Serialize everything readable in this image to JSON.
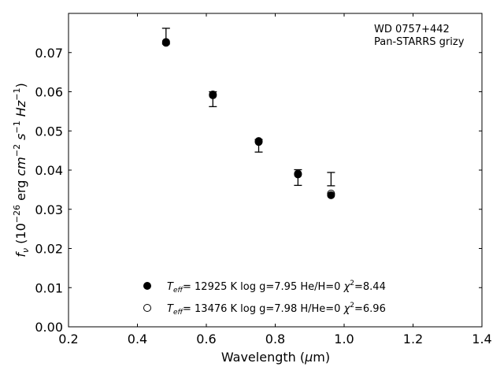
{
  "chart_data": {
    "type": "scatter",
    "annotation": [
      "WD 0757+442",
      "Pan-STARRS grizy"
    ],
    "xlabel_parts": {
      "main": "Wavelength (",
      "mu": "μ",
      "unit": "m)"
    },
    "ylabel_parts": {
      "f": "f",
      "nu": "ν",
      "open": " (10",
      "exp26": "−26",
      "erg": " erg ",
      "cm": "cm",
      "exp2": "−2",
      "s": " s",
      "exp1": "−1",
      "hz": " Hz",
      "close": ")"
    },
    "xlim": [
      0.2,
      1.4
    ],
    "ylim": [
      0.0,
      0.08
    ],
    "xticks": [
      "0.2",
      "0.4",
      "0.6",
      "0.8",
      "1.0",
      "1.2",
      "1.4"
    ],
    "xtick_values": [
      0.2,
      0.4,
      0.6,
      0.8,
      1.0,
      1.2,
      1.4
    ],
    "yticks": [
      "0.00",
      "0.01",
      "0.02",
      "0.03",
      "0.04",
      "0.05",
      "0.06",
      "0.07"
    ],
    "ytick_values": [
      0.0,
      0.01,
      0.02,
      0.03,
      0.04,
      0.05,
      0.06,
      0.07
    ],
    "grid": false,
    "observed": {
      "x": [
        0.483,
        0.619,
        0.752,
        0.866,
        0.962
      ],
      "y": [
        0.0742,
        0.0581,
        0.0462,
        0.0381,
        0.0377
      ],
      "err": [
        0.002,
        0.0019,
        0.0016,
        0.002,
        0.0017
      ]
    },
    "series": [
      {
        "marker": "filled-circle",
        "label": {
          "t": "T",
          "sub": "eff",
          "rest": "= 12925 K  log g=7.95  He/H=0  ",
          "chi": "χ",
          "sup": "2",
          "val": "=8.44"
        },
        "x": [
          0.483,
          0.619,
          0.752,
          0.866,
          0.962
        ],
        "y": [
          0.0727,
          0.0593,
          0.0474,
          0.0389,
          0.0336
        ]
      },
      {
        "marker": "open-circle",
        "label": {
          "t": "T",
          "sub": "eff",
          "rest": "= 13476 K  log g=7.98  H/He=0  ",
          "chi": "χ",
          "sup": "2",
          "val": "=6.96"
        },
        "x": [
          0.483,
          0.619,
          0.752,
          0.866,
          0.962
        ],
        "y": [
          0.0725,
          0.0591,
          0.0472,
          0.0391,
          0.034
        ]
      }
    ]
  }
}
